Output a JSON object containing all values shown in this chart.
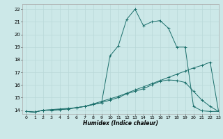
{
  "xlabel": "Humidex (Indice chaleur)",
  "bg_color": "#cce8e8",
  "grid_color": "#b8d8d8",
  "line_color": "#1a6e6a",
  "xlim": [
    -0.5,
    23
  ],
  "ylim": [
    13.7,
    22.4
  ],
  "xticks": [
    0,
    1,
    2,
    3,
    4,
    5,
    6,
    7,
    8,
    9,
    10,
    11,
    12,
    13,
    14,
    15,
    16,
    17,
    18,
    19,
    20,
    21,
    22,
    23
  ],
  "yticks": [
    14,
    15,
    16,
    17,
    18,
    19,
    20,
    21,
    22
  ],
  "line1_x": [
    0,
    1,
    2,
    3,
    4,
    5,
    6,
    7,
    8,
    9,
    10,
    11,
    12,
    13,
    14,
    15,
    16,
    17,
    18,
    19,
    20,
    21,
    22,
    23
  ],
  "line1_y": [
    13.9,
    13.85,
    14.0,
    14.0,
    14.05,
    14.1,
    14.2,
    14.3,
    14.5,
    14.7,
    14.9,
    15.1,
    15.35,
    15.6,
    15.85,
    16.1,
    16.35,
    16.6,
    16.85,
    17.1,
    17.35,
    17.55,
    17.8,
    13.9
  ],
  "line2_x": [
    0,
    1,
    2,
    3,
    4,
    5,
    6,
    7,
    8,
    9,
    10,
    11,
    12,
    13,
    14,
    15,
    16,
    17,
    18,
    19,
    20,
    21,
    22,
    23
  ],
  "line2_y": [
    13.9,
    13.85,
    14.0,
    14.0,
    14.05,
    14.1,
    14.2,
    14.3,
    14.45,
    14.6,
    14.8,
    15.0,
    15.3,
    15.5,
    15.7,
    16.0,
    16.3,
    16.4,
    16.35,
    16.2,
    15.5,
    14.8,
    14.3,
    13.9
  ],
  "line3_x": [
    0,
    1,
    2,
    3,
    4,
    5,
    6,
    7,
    8,
    9,
    10,
    11,
    12,
    13,
    14,
    15,
    16,
    17,
    18,
    19,
    20,
    21,
    22,
    23
  ],
  "line3_y": [
    13.9,
    13.85,
    14.0,
    14.05,
    14.1,
    14.15,
    14.2,
    14.3,
    14.45,
    14.6,
    18.3,
    19.1,
    21.2,
    22.0,
    20.7,
    21.0,
    21.1,
    20.5,
    19.0,
    19.0,
    14.3,
    13.95,
    13.9,
    13.9
  ]
}
